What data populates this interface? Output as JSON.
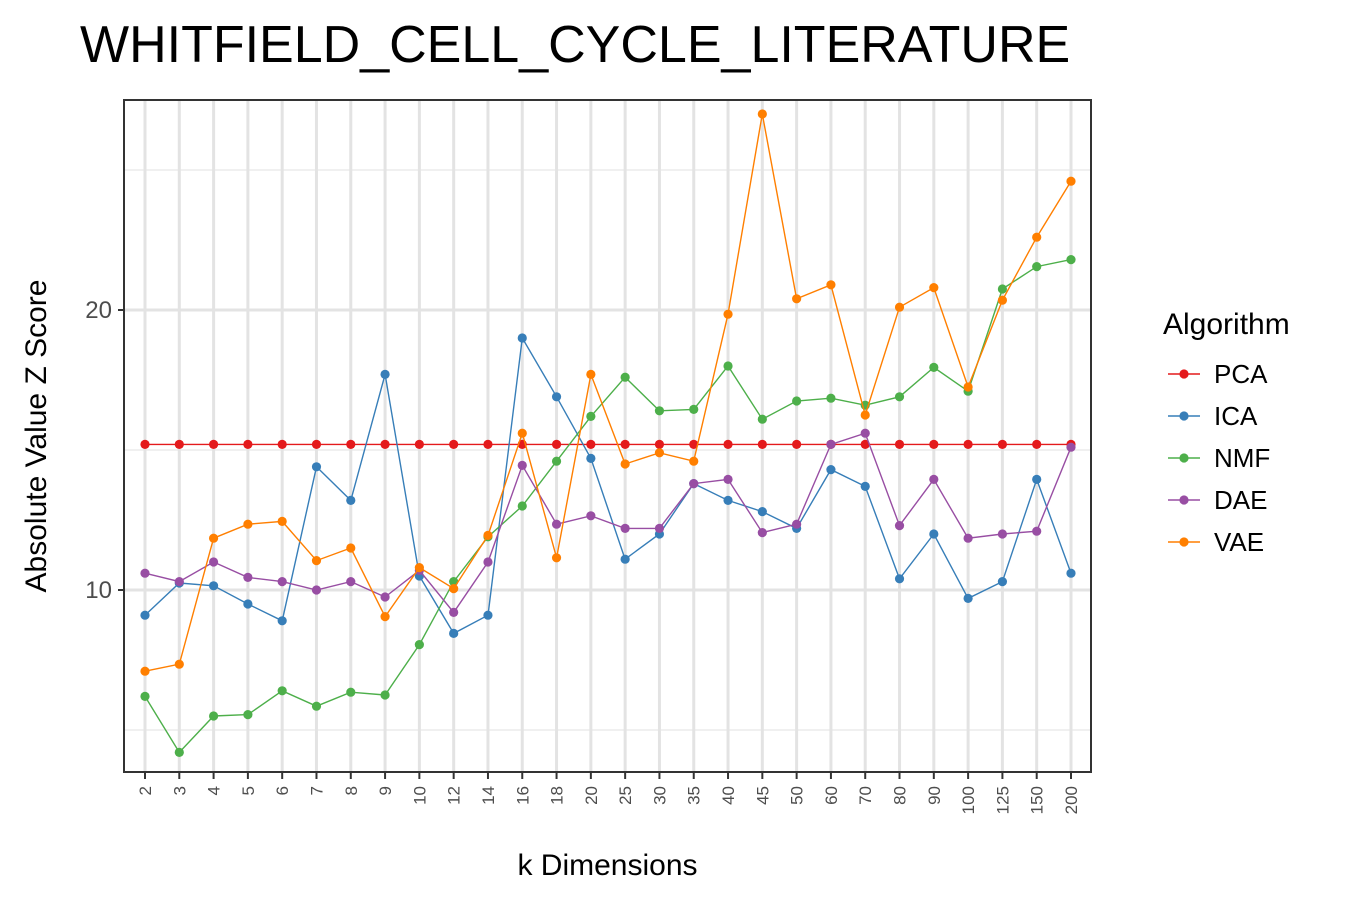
{
  "chart_data": {
    "type": "line",
    "title": "WHITFIELD_CELL_CYCLE_LITERATURE",
    "xlabel": "k Dimensions",
    "ylabel": "Absolute Value Z Score",
    "ylim": [
      3.5,
      27.5
    ],
    "yticks": [
      10,
      20
    ],
    "grid": true,
    "legend_title": "Algorithm",
    "legend_position": "right",
    "categories": [
      "2",
      "3",
      "4",
      "5",
      "6",
      "7",
      "8",
      "9",
      "10",
      "12",
      "14",
      "16",
      "18",
      "20",
      "25",
      "30",
      "35",
      "40",
      "45",
      "50",
      "60",
      "70",
      "80",
      "90",
      "100",
      "125",
      "150",
      "200"
    ],
    "series": [
      {
        "name": "PCA",
        "color": "#e41a1c",
        "values": [
          15.2,
          15.2,
          15.2,
          15.2,
          15.2,
          15.2,
          15.2,
          15.2,
          15.2,
          15.2,
          15.2,
          15.2,
          15.2,
          15.2,
          15.2,
          15.2,
          15.2,
          15.2,
          15.2,
          15.2,
          15.2,
          15.2,
          15.2,
          15.2,
          15.2,
          15.2,
          15.2,
          15.2
        ]
      },
      {
        "name": "ICA",
        "color": "#377eb8",
        "values": [
          9.1,
          10.25,
          10.15,
          9.5,
          8.9,
          14.4,
          13.2,
          17.7,
          10.5,
          8.45,
          9.1,
          19.0,
          16.9,
          14.7,
          11.1,
          12.0,
          13.8,
          13.2,
          12.8,
          12.2,
          14.3,
          13.7,
          10.4,
          12.0,
          9.7,
          10.3,
          13.95,
          10.6
        ]
      },
      {
        "name": "NMF",
        "color": "#4daf4a",
        "values": [
          6.2,
          4.2,
          5.5,
          5.55,
          6.4,
          5.85,
          6.35,
          6.25,
          8.05,
          10.3,
          11.9,
          13.0,
          14.6,
          16.2,
          17.6,
          16.4,
          16.45,
          18.0,
          16.1,
          16.75,
          16.85,
          16.6,
          16.9,
          17.95,
          17.1,
          20.75,
          21.55,
          21.8
        ]
      },
      {
        "name": "DAE",
        "color": "#984ea3",
        "values": [
          10.6,
          10.3,
          11.0,
          10.45,
          10.3,
          10.0,
          10.3,
          9.75,
          10.7,
          9.2,
          11.0,
          14.45,
          12.35,
          12.65,
          12.2,
          12.2,
          13.8,
          13.95,
          12.05,
          12.35,
          15.2,
          15.6,
          12.3,
          13.95,
          11.85,
          12.0,
          12.1,
          15.1
        ]
      },
      {
        "name": "VAE",
        "color": "#ff7f00",
        "values": [
          7.1,
          7.35,
          11.85,
          12.35,
          12.45,
          11.05,
          11.5,
          9.05,
          10.8,
          10.05,
          11.95,
          15.6,
          11.15,
          17.7,
          14.5,
          14.9,
          14.6,
          19.85,
          27.0,
          20.4,
          20.9,
          16.25,
          20.1,
          20.8,
          17.25,
          20.35,
          22.6,
          24.6
        ]
      }
    ]
  }
}
